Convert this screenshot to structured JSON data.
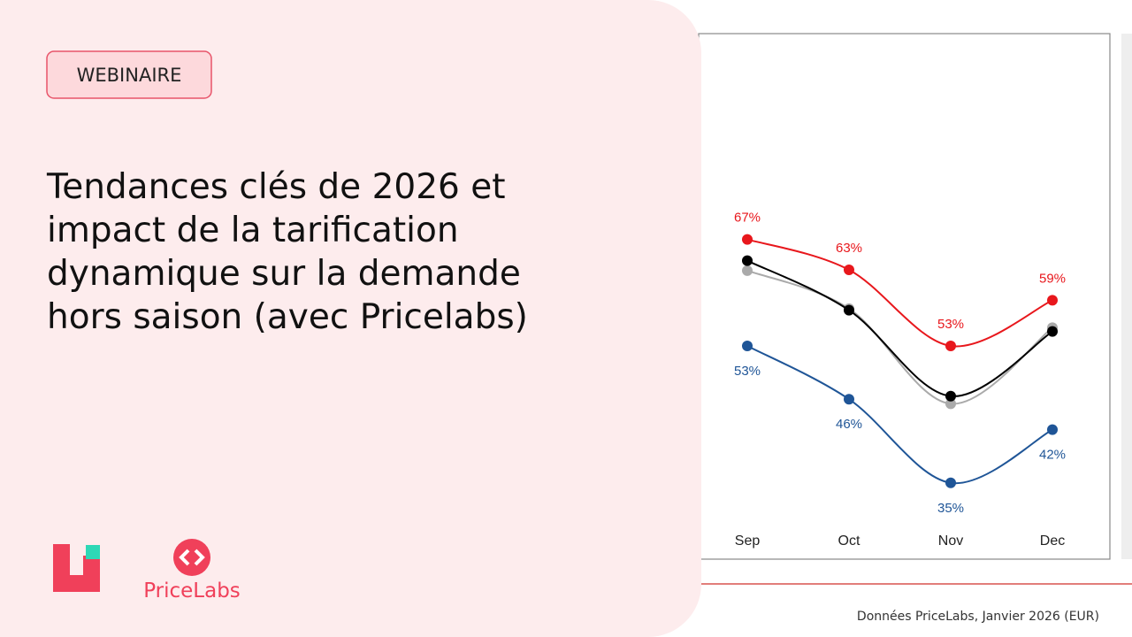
{
  "badge": "WEBINAIRE",
  "title_lines": [
    "Tendances clés de 2026 et",
    "impact de la tarification",
    "dynamique sur la demande",
    "hors saison (avec Pricelabs)"
  ],
  "brand": "PriceLabs",
  "caption": "Données PriceLabs, Janvier 2026 (EUR)",
  "chart_data": {
    "type": "line",
    "categories": [
      "Sep",
      "Oct",
      "Nov",
      "Dec"
    ],
    "series": [
      {
        "color": "#aaaaaa",
        "values": [
          62.9,
          57.9,
          45.4,
          55.4
        ]
      },
      {
        "color": "#000000",
        "values": [
          64.2,
          57.7,
          46.4,
          54.9
        ]
      },
      {
        "color": "#e8171c",
        "values": [
          67,
          63,
          53,
          59
        ],
        "value_labels": [
          "67%",
          "63%",
          "53%",
          "59%"
        ]
      },
      {
        "color": "#1f5597",
        "values": [
          53,
          46,
          35,
          42
        ],
        "value_labels": [
          "53%",
          "46%",
          "35%",
          "42%"
        ]
      }
    ]
  }
}
